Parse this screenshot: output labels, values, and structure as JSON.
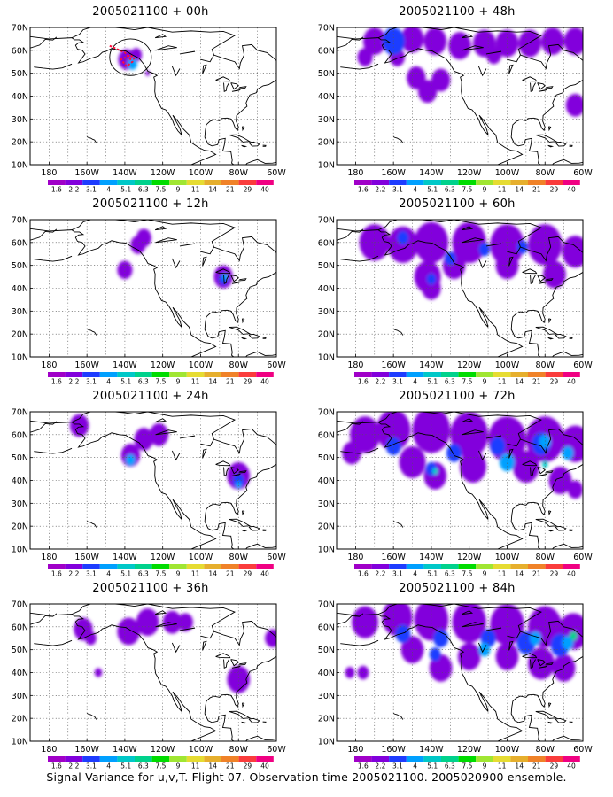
{
  "caption": "Signal Variance for u,v,T. Flight 07. Observation time 2005021100. 2005020900 ensemble.",
  "chart_data": {
    "type": "heatmap",
    "map_projection": "cylindrical lat/lon, North America",
    "lon_range": [
      -190,
      -60
    ],
    "lat_range": [
      10,
      70
    ],
    "grid": true,
    "x_ticks": [
      "180",
      "160W",
      "140W",
      "120W",
      "100W",
      "80W",
      "60W"
    ],
    "y_ticks": [
      "10N",
      "20N",
      "30N",
      "40N",
      "50N",
      "60N",
      "70N"
    ],
    "colorbar": {
      "levels": [
        "1.6",
        "2.2",
        "3.1",
        "4",
        "5.1",
        "6.3",
        "7.5",
        "9",
        "11",
        "14",
        "21",
        "29",
        "40"
      ],
      "colors": [
        "#a000c8",
        "#8200dc",
        "#1e3cff",
        "#00a0ff",
        "#00c8c8",
        "#00d28c",
        "#00dc00",
        "#a0e632",
        "#e6dc32",
        "#e6af2d",
        "#f08228",
        "#fa3c3c",
        "#f00082"
      ]
    },
    "panels": [
      {
        "title": "2005021100 + 00h",
        "blobs": [
          {
            "lon": -139,
            "lat": 56,
            "r": 4.5,
            "level": 1
          },
          {
            "lon": -136,
            "lat": 54,
            "r": 2.5,
            "level": 3
          },
          {
            "lon": -134,
            "lat": 58,
            "r": 3,
            "level": 1
          },
          {
            "lon": -128,
            "lat": 50,
            "r": 1.2,
            "level": 1
          }
        ],
        "flight_track": [
          [
            -148,
            62
          ],
          [
            -140,
            59
          ],
          [
            -136,
            55
          ],
          [
            -139,
            53
          ],
          [
            -142,
            56
          ],
          [
            -137,
            58
          ],
          [
            -135,
            56
          ]
        ],
        "flight_region": {
          "lon": -137,
          "lat": 57,
          "rlon": 11,
          "rlat": 8
        }
      },
      {
        "title": "2005021100 + 12h",
        "blobs": [
          {
            "lon": -140,
            "lat": 48,
            "r": 4,
            "level": 1
          },
          {
            "lon": -133,
            "lat": 59,
            "r": 4,
            "level": 1
          },
          {
            "lon": -130,
            "lat": 62,
            "r": 4,
            "level": 1
          },
          {
            "lon": -88,
            "lat": 45,
            "r": 5,
            "level": 1
          },
          {
            "lon": -88,
            "lat": 44,
            "r": 2.5,
            "level": 2
          },
          {
            "lon": -87,
            "lat": 45,
            "r": 1.5,
            "level": 3
          }
        ]
      },
      {
        "title": "2005021100 + 24h",
        "blobs": [
          {
            "lon": -164,
            "lat": 64,
            "r": 5,
            "level": 1
          },
          {
            "lon": -137,
            "lat": 51,
            "r": 5,
            "level": 1
          },
          {
            "lon": -137,
            "lat": 49,
            "r": 2.5,
            "level": 3
          },
          {
            "lon": -130,
            "lat": 58,
            "r": 5,
            "level": 1
          },
          {
            "lon": -122,
            "lat": 60,
            "r": 5,
            "level": 1
          },
          {
            "lon": -80,
            "lat": 42,
            "r": 6,
            "level": 1
          },
          {
            "lon": -80,
            "lat": 40,
            "r": 3,
            "level": 2
          },
          {
            "lon": -80,
            "lat": 38,
            "r": 1.5,
            "level": 3
          }
        ]
      },
      {
        "title": "2005021100 + 36h",
        "blobs": [
          {
            "lon": -162,
            "lat": 59,
            "r": 5,
            "level": 1
          },
          {
            "lon": -158,
            "lat": 55,
            "r": 3,
            "level": 1
          },
          {
            "lon": -138,
            "lat": 58,
            "r": 6,
            "level": 1
          },
          {
            "lon": -128,
            "lat": 62,
            "r": 6,
            "level": 1
          },
          {
            "lon": -115,
            "lat": 62,
            "r": 5,
            "level": 1
          },
          {
            "lon": -108,
            "lat": 62,
            "r": 4,
            "level": 1
          },
          {
            "lon": -154,
            "lat": 40,
            "r": 2,
            "level": 1
          },
          {
            "lon": -80,
            "lat": 37,
            "r": 6,
            "level": 1
          },
          {
            "lon": -62,
            "lat": 55,
            "r": 4,
            "level": 1
          }
        ]
      },
      {
        "title": "2005021100 + 48h",
        "blobs": [
          {
            "lon": -170,
            "lat": 64,
            "r": 6,
            "level": 1
          },
          {
            "lon": -160,
            "lat": 64,
            "r": 6,
            "level": 2
          },
          {
            "lon": -150,
            "lat": 65,
            "r": 6,
            "level": 1
          },
          {
            "lon": -138,
            "lat": 64,
            "r": 6,
            "level": 1
          },
          {
            "lon": -125,
            "lat": 62,
            "r": 6,
            "level": 1
          },
          {
            "lon": -112,
            "lat": 63,
            "r": 6,
            "level": 1
          },
          {
            "lon": -100,
            "lat": 63,
            "r": 6,
            "level": 1
          },
          {
            "lon": -88,
            "lat": 63,
            "r": 6,
            "level": 1
          },
          {
            "lon": -76,
            "lat": 64,
            "r": 6,
            "level": 1
          },
          {
            "lon": -64,
            "lat": 64,
            "r": 6,
            "level": 1
          },
          {
            "lon": -175,
            "lat": 57,
            "r": 4,
            "level": 1
          },
          {
            "lon": -158,
            "lat": 57,
            "r": 4,
            "level": 1
          },
          {
            "lon": -148,
            "lat": 48,
            "r": 5,
            "level": 1
          },
          {
            "lon": -142,
            "lat": 42,
            "r": 5,
            "level": 1
          },
          {
            "lon": -135,
            "lat": 47,
            "r": 5,
            "level": 1
          },
          {
            "lon": -107,
            "lat": 58,
            "r": 4,
            "level": 1
          },
          {
            "lon": -64,
            "lat": 36,
            "r": 5,
            "level": 1
          }
        ]
      },
      {
        "title": "2005021100 + 60h",
        "blobs": [
          {
            "lon": -170,
            "lat": 60,
            "r": 8,
            "level": 1
          },
          {
            "lon": -155,
            "lat": 59,
            "r": 8,
            "level": 1
          },
          {
            "lon": -140,
            "lat": 60,
            "r": 9,
            "level": 1
          },
          {
            "lon": -120,
            "lat": 60,
            "r": 9,
            "level": 1
          },
          {
            "lon": -100,
            "lat": 59,
            "r": 9,
            "level": 1
          },
          {
            "lon": -80,
            "lat": 59,
            "r": 9,
            "level": 1
          },
          {
            "lon": -64,
            "lat": 56,
            "r": 7,
            "level": 1
          },
          {
            "lon": -142,
            "lat": 45,
            "r": 7,
            "level": 1
          },
          {
            "lon": -140,
            "lat": 40,
            "r": 5,
            "level": 1
          },
          {
            "lon": -128,
            "lat": 50,
            "r": 6,
            "level": 1
          },
          {
            "lon": -100,
            "lat": 50,
            "r": 6,
            "level": 1
          },
          {
            "lon": -75,
            "lat": 46,
            "r": 6,
            "level": 1
          },
          {
            "lon": -155,
            "lat": 62,
            "r": 3,
            "level": 2
          },
          {
            "lon": -130,
            "lat": 53,
            "r": 3,
            "level": 2
          },
          {
            "lon": -112,
            "lat": 57,
            "r": 3,
            "level": 2
          },
          {
            "lon": -92,
            "lat": 58,
            "r": 3,
            "level": 2
          },
          {
            "lon": -140,
            "lat": 44,
            "r": 2.5,
            "level": 2
          }
        ]
      },
      {
        "title": "2005021100 + 72h",
        "blobs": [
          {
            "lon": -175,
            "lat": 60,
            "r": 8,
            "level": 1
          },
          {
            "lon": -160,
            "lat": 62,
            "r": 9,
            "level": 1
          },
          {
            "lon": -140,
            "lat": 62,
            "r": 10,
            "level": 1
          },
          {
            "lon": -120,
            "lat": 60,
            "r": 10,
            "level": 1
          },
          {
            "lon": -100,
            "lat": 58,
            "r": 10,
            "level": 1
          },
          {
            "lon": -80,
            "lat": 58,
            "r": 10,
            "level": 1
          },
          {
            "lon": -64,
            "lat": 56,
            "r": 8,
            "level": 1
          },
          {
            "lon": -182,
            "lat": 52,
            "r": 5,
            "level": 1
          },
          {
            "lon": -150,
            "lat": 48,
            "r": 7,
            "level": 1
          },
          {
            "lon": -138,
            "lat": 42,
            "r": 6,
            "level": 1
          },
          {
            "lon": -118,
            "lat": 46,
            "r": 7,
            "level": 1
          },
          {
            "lon": -90,
            "lat": 46,
            "r": 7,
            "level": 1
          },
          {
            "lon": -72,
            "lat": 40,
            "r": 6,
            "level": 1
          },
          {
            "lon": -64,
            "lat": 36,
            "r": 4,
            "level": 1
          },
          {
            "lon": -160,
            "lat": 55,
            "r": 4,
            "level": 2
          },
          {
            "lon": -128,
            "lat": 52,
            "r": 4,
            "level": 2
          },
          {
            "lon": -105,
            "lat": 55,
            "r": 4,
            "level": 2
          },
          {
            "lon": -82,
            "lat": 56,
            "r": 5,
            "level": 2
          },
          {
            "lon": -140,
            "lat": 45,
            "r": 3,
            "level": 2
          },
          {
            "lon": -100,
            "lat": 48,
            "r": 4,
            "level": 3
          },
          {
            "lon": -80,
            "lat": 57,
            "r": 3,
            "level": 3
          },
          {
            "lon": -68,
            "lat": 52,
            "r": 3,
            "level": 3
          },
          {
            "lon": -138,
            "lat": 44,
            "r": 1.5,
            "level": 4
          },
          {
            "lon": -80,
            "lat": 47,
            "r": 1.5,
            "level": 4
          }
        ]
      },
      {
        "title": "2005021100 + 84h",
        "blobs": [
          {
            "lon": -175,
            "lat": 62,
            "r": 7,
            "level": 1
          },
          {
            "lon": -158,
            "lat": 64,
            "r": 8,
            "level": 1
          },
          {
            "lon": -140,
            "lat": 63,
            "r": 9,
            "level": 1
          },
          {
            "lon": -120,
            "lat": 62,
            "r": 9,
            "level": 1
          },
          {
            "lon": -100,
            "lat": 61,
            "r": 9,
            "level": 1
          },
          {
            "lon": -80,
            "lat": 60,
            "r": 9,
            "level": 1
          },
          {
            "lon": -65,
            "lat": 58,
            "r": 8,
            "level": 1
          },
          {
            "lon": -183,
            "lat": 40,
            "r": 2.5,
            "level": 1
          },
          {
            "lon": -176,
            "lat": 40,
            "r": 3,
            "level": 1
          },
          {
            "lon": -150,
            "lat": 50,
            "r": 6,
            "level": 1
          },
          {
            "lon": -135,
            "lat": 42,
            "r": 6,
            "level": 1
          },
          {
            "lon": -120,
            "lat": 47,
            "r": 6,
            "level": 1
          },
          {
            "lon": -100,
            "lat": 47,
            "r": 6,
            "level": 1
          },
          {
            "lon": -82,
            "lat": 44,
            "r": 7,
            "level": 1
          },
          {
            "lon": -70,
            "lat": 42,
            "r": 6,
            "level": 1
          },
          {
            "lon": -155,
            "lat": 57,
            "r": 4,
            "level": 2
          },
          {
            "lon": -135,
            "lat": 55,
            "r": 4,
            "level": 2
          },
          {
            "lon": -110,
            "lat": 55,
            "r": 4,
            "level": 2
          },
          {
            "lon": -90,
            "lat": 53,
            "r": 5,
            "level": 2
          },
          {
            "lon": -72,
            "lat": 52,
            "r": 5,
            "level": 2
          },
          {
            "lon": -138,
            "lat": 48,
            "r": 3,
            "level": 2
          },
          {
            "lon": -112,
            "lat": 50,
            "r": 3,
            "level": 3
          },
          {
            "lon": -85,
            "lat": 55,
            "r": 3,
            "level": 3
          },
          {
            "lon": -68,
            "lat": 53,
            "r": 3,
            "level": 3
          },
          {
            "lon": -65,
            "lat": 56,
            "r": 2,
            "level": 5
          }
        ]
      }
    ]
  }
}
